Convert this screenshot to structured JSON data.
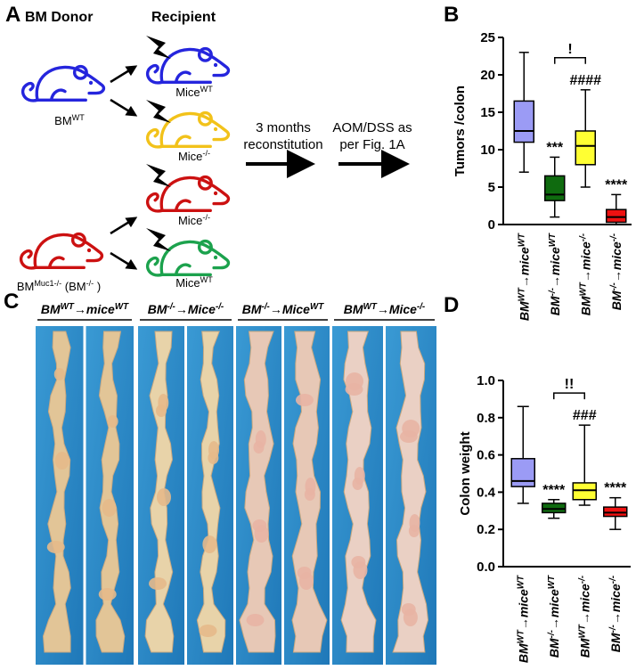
{
  "panels": {
    "a": "A",
    "b": "B",
    "c": "C",
    "d": "D"
  },
  "diagram": {
    "donor_title": "BM Donor",
    "recipient_title": "Recipient",
    "donors": [
      [
        {
          "t": "BM"
        },
        {
          "t": "WT",
          "sup": true
        }
      ],
      [
        {
          "t": "BM"
        },
        {
          "t": "Muc1-/-",
          "sup": true
        },
        {
          "t": " (BM"
        },
        {
          "t": "-/-",
          "sup": true
        },
        {
          "t": " )"
        }
      ]
    ],
    "recipients": [
      [
        {
          "t": "Mice"
        },
        {
          "t": "WT",
          "sup": true
        }
      ],
      [
        {
          "t": "Mice"
        },
        {
          "t": "-/-",
          "sup": true
        }
      ],
      [
        {
          "t": "Mice"
        },
        {
          "t": "-/-",
          "sup": true
        }
      ],
      [
        {
          "t": "Mice"
        },
        {
          "t": "WT",
          "sup": true
        }
      ]
    ],
    "steps": [
      [
        "3 months",
        "reconstitution"
      ],
      [
        "AOM/DSS as",
        "per Fig. 1A"
      ]
    ]
  },
  "photos": {
    "groups": [
      [
        {
          "t": "BM"
        },
        {
          "t": "WT",
          "sup": true
        },
        {
          "t": "→"
        },
        {
          "t": "mice"
        },
        {
          "t": "WT",
          "sup": true
        }
      ],
      [
        {
          "t": "BM"
        },
        {
          "t": "-/-",
          "sup": true
        },
        {
          "t": "→"
        },
        {
          "t": "Mice"
        },
        {
          "t": "-/-",
          "sup": true
        }
      ],
      [
        {
          "t": "BM"
        },
        {
          "t": "-/-",
          "sup": true
        },
        {
          "t": "→"
        },
        {
          "t": "Mice"
        },
        {
          "t": "WT",
          "sup": true
        }
      ],
      [
        {
          "t": "BM"
        },
        {
          "t": "WT",
          "sup": true
        },
        {
          "t": "→"
        },
        {
          "t": "Mice"
        },
        {
          "t": "-/-",
          "sup": true
        }
      ]
    ]
  },
  "chart_data": [
    {
      "type": "box",
      "ylabel": "Tumors /colon",
      "categories": [
        [
          {
            "t": "BM"
          },
          {
            "t": "WT",
            "sup": true
          },
          {
            "t": "→"
          },
          {
            "t": "mice"
          },
          {
            "t": "WT",
            "sup": true
          }
        ],
        [
          {
            "t": "BM"
          },
          {
            "t": "-/-",
            "sup": true
          },
          {
            "t": "→"
          },
          {
            "t": "mice"
          },
          {
            "t": "WT",
            "sup": true
          }
        ],
        [
          {
            "t": "BM"
          },
          {
            "t": "WT",
            "sup": true
          },
          {
            "t": "→"
          },
          {
            "t": "mice"
          },
          {
            "t": "-/-",
            "sup": true
          }
        ],
        [
          {
            "t": "BM"
          },
          {
            "t": "-/-",
            "sup": true
          },
          {
            "t": "→"
          },
          {
            "t": "mice"
          },
          {
            "t": "-/-",
            "sup": true
          }
        ]
      ],
      "colors": [
        "#9b9bf5",
        "#0f6b0f",
        "#ffff33",
        "#ee1111"
      ],
      "min": [
        7,
        1,
        5,
        0
      ],
      "q1": [
        11,
        3.2,
        8,
        0.3
      ],
      "median": [
        12.5,
        4,
        10.5,
        1
      ],
      "q3": [
        16.5,
        6.5,
        12.5,
        2
      ],
      "max": [
        23,
        9,
        18,
        4
      ],
      "ylim": [
        0,
        25
      ],
      "yticks": [
        0,
        5,
        10,
        15,
        20,
        25
      ],
      "annotations": [
        {
          "category": 1,
          "text": "***"
        },
        {
          "category": 2,
          "text": "####"
        },
        {
          "category": 3,
          "text": "****"
        }
      ],
      "brackets": [
        {
          "from": 1,
          "to": 2,
          "text": "!"
        }
      ]
    },
    {
      "type": "box",
      "ylabel": "Colon weight",
      "categories": [
        [
          {
            "t": "BM"
          },
          {
            "t": "WT",
            "sup": true
          },
          {
            "t": "→"
          },
          {
            "t": "mice"
          },
          {
            "t": "WT",
            "sup": true
          }
        ],
        [
          {
            "t": "BM"
          },
          {
            "t": "-/-",
            "sup": true
          },
          {
            "t": "→"
          },
          {
            "t": "mice"
          },
          {
            "t": "WT",
            "sup": true
          }
        ],
        [
          {
            "t": "BM"
          },
          {
            "t": "WT",
            "sup": true
          },
          {
            "t": "→"
          },
          {
            "t": "mice"
          },
          {
            "t": "-/-",
            "sup": true
          }
        ],
        [
          {
            "t": "BM"
          },
          {
            "t": "-/-",
            "sup": true
          },
          {
            "t": "→"
          },
          {
            "t": "mice"
          },
          {
            "t": "-/-",
            "sup": true
          }
        ]
      ],
      "colors": [
        "#9b9bf5",
        "#0f6b0f",
        "#ffff33",
        "#ee1111"
      ],
      "min": [
        0.34,
        0.26,
        0.33,
        0.2
      ],
      "q1": [
        0.43,
        0.29,
        0.36,
        0.27
      ],
      "median": [
        0.46,
        0.31,
        0.41,
        0.29
      ],
      "q3": [
        0.58,
        0.34,
        0.45,
        0.32
      ],
      "max": [
        0.86,
        0.36,
        0.76,
        0.37
      ],
      "ylim": [
        0,
        1
      ],
      "yticks": [
        {
          "value": 0,
          "label": "0.0"
        },
        0.2,
        0.4,
        0.6,
        0.8,
        {
          "value": 1,
          "label": "1.0"
        }
      ],
      "annotations": [
        {
          "category": 1,
          "text": "****"
        },
        {
          "category": 2,
          "text": "###"
        },
        {
          "category": 3,
          "text": "****"
        }
      ],
      "brackets": [
        {
          "from": 1,
          "to": 2,
          "text": "!!"
        }
      ]
    }
  ]
}
